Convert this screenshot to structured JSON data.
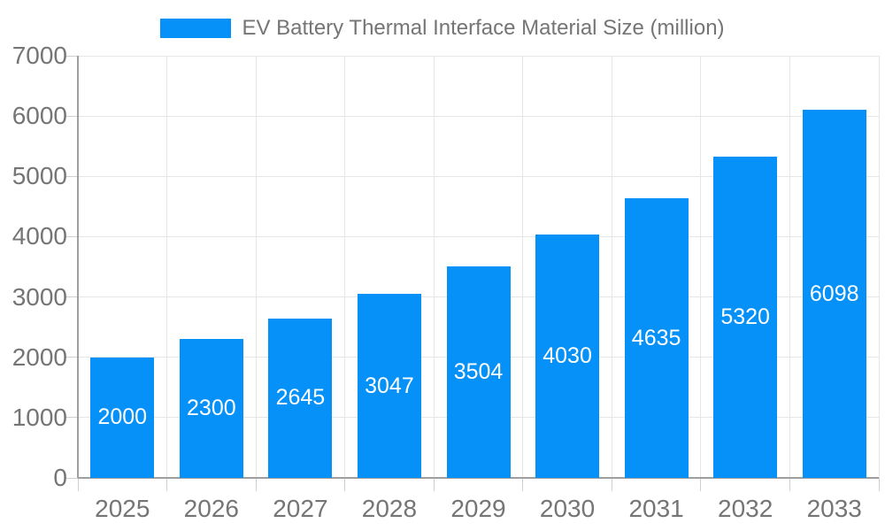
{
  "legend": {
    "label": "EV Battery Thermal Interface Material Size (million)"
  },
  "colors": {
    "bar": "#0591f7",
    "axis": "#9e9e9e",
    "grid": "#e6e6e6",
    "tick": "#cfcfcf",
    "label": "#757575",
    "value_label": "#ffffff",
    "background": "#ffffff"
  },
  "chart_data": {
    "type": "bar",
    "title": "EV Battery Thermal Interface Material Size (million)",
    "categories": [
      "2025",
      "2026",
      "2027",
      "2028",
      "2029",
      "2030",
      "2031",
      "2032",
      "2033"
    ],
    "values": [
      2000,
      2300,
      2645,
      3047,
      3504,
      4030,
      4635,
      5320,
      6098
    ],
    "value_labels": [
      "2000",
      "2300",
      "2645",
      "3047",
      "3504",
      "4030",
      "4635",
      "5320",
      "6098"
    ],
    "xlabel": "",
    "ylabel": "",
    "ylim": [
      0,
      7000
    ],
    "ytick_step": 1000,
    "ytick_labels": [
      "0",
      "1000",
      "2000",
      "3000",
      "4000",
      "5000",
      "6000",
      "7000"
    ],
    "grid": true,
    "legend_position": "top",
    "value_label_position": "inside-center"
  }
}
